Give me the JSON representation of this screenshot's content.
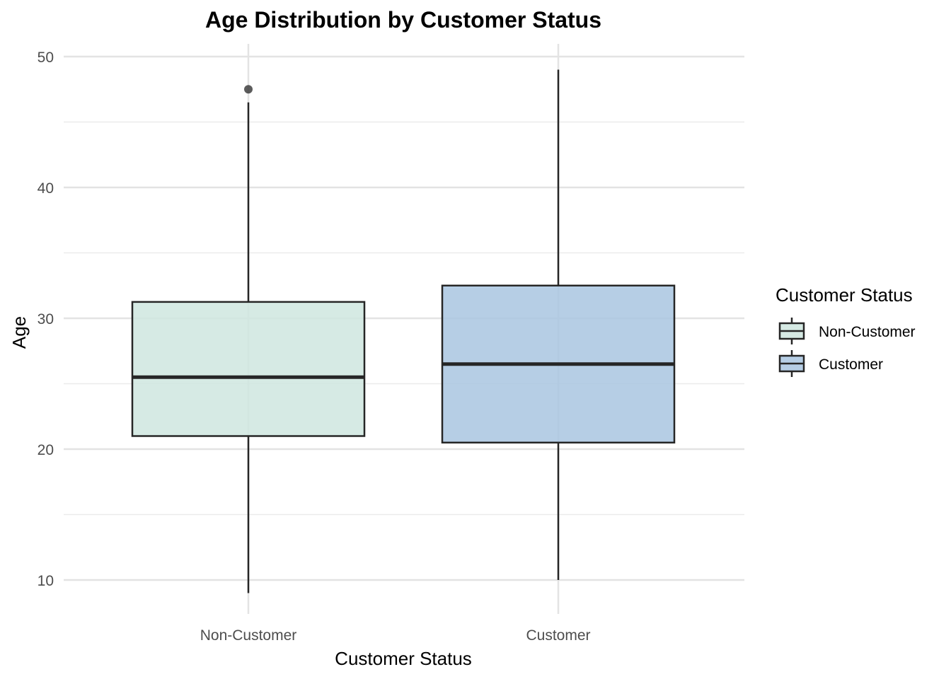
{
  "chart_data": {
    "type": "boxplot",
    "title": "Age Distribution by Customer Status",
    "xlabel": "Customer Status",
    "ylabel": "Age",
    "ylim": [
      8,
      51
    ],
    "yticks": [
      10,
      20,
      30,
      40,
      50
    ],
    "grid": true,
    "legend": {
      "title": "Customer Status",
      "placement": "right"
    },
    "categories": [
      "Non-Customer",
      "Customer"
    ],
    "series": [
      {
        "name": "Non-Customer",
        "color": "#cfe6df",
        "whisker_low": 9,
        "q1": 21,
        "median": 25.5,
        "q3": 31.25,
        "whisker_high": 46.5,
        "outliers": [
          47.5
        ]
      },
      {
        "name": "Customer",
        "color": "#a9c6e0",
        "whisker_low": 10,
        "q1": 20.5,
        "median": 26.5,
        "q3": 32.5,
        "whisker_high": 49,
        "outliers": []
      }
    ]
  }
}
